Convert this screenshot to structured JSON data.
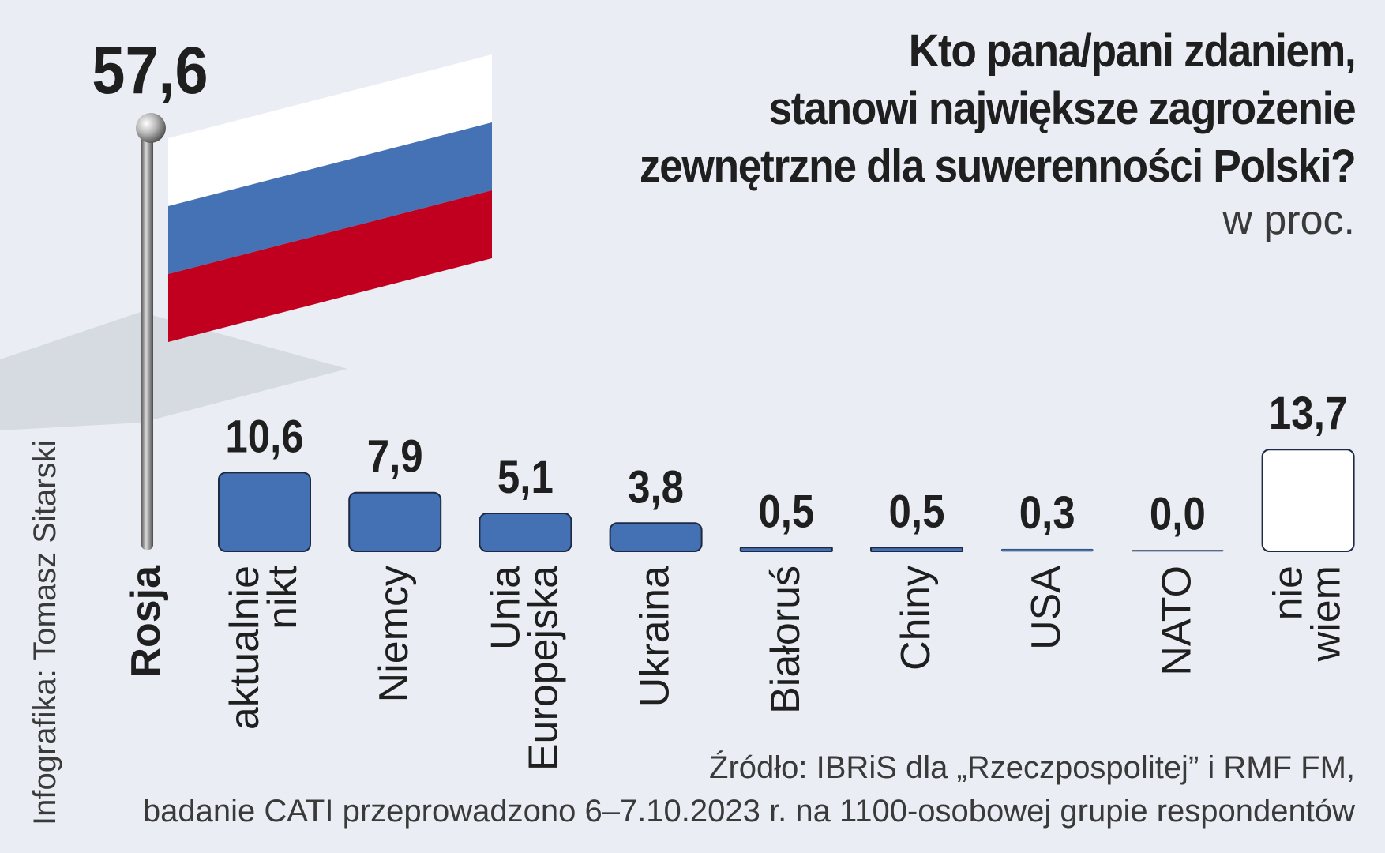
{
  "title": {
    "line1": "Kto pana/pani zdaniem,",
    "line2": "stanowi największe zagrożenie",
    "line3": "zewnętrzne dla suwerenności Polski?",
    "unit": "w proc."
  },
  "chart_data": {
    "type": "bar",
    "title": "Kto pana/pani zdaniem, stanowi największe zagrożenie zewnętrzne dla suwerenności Polski?",
    "ylabel": "w proc.",
    "categories": [
      [
        "Rosja"
      ],
      [
        "aktualnie",
        "nikt"
      ],
      [
        "Niemcy"
      ],
      [
        "Unia",
        "Europejska"
      ],
      [
        "Ukraina"
      ],
      [
        "Białoruś"
      ],
      [
        "Chiny"
      ],
      [
        "USA"
      ],
      [
        "NATO"
      ],
      [
        "nie",
        "wiem"
      ]
    ],
    "values": [
      57.6,
      10.6,
      7.9,
      5.1,
      3.8,
      0.5,
      0.5,
      0.3,
      0.0,
      13.7
    ],
    "value_labels": [
      "57,6",
      "10,6",
      "7,9",
      "5,1",
      "3,8",
      "0,5",
      "0,5",
      "0,3",
      "0,0",
      "13,7"
    ],
    "highlight": "Rosja",
    "colors": {
      "bar": "#4471b3",
      "bar_outline": "#1e2a44",
      "no_opinion_bar": "#ffffff",
      "flag_white": "#ffffff",
      "flag_blue": "#4472b4",
      "flag_red": "#c1001f",
      "background": "#eaeef4"
    }
  },
  "source": {
    "line1": "Źródło: IBRiS dla „Rzeczpospolitej” i RMF FM,",
    "line2": "badanie CATI przeprowadzono 6–7.10.2023 r. na 1100-osobowej grupie respondentów"
  },
  "credit": "Infografika: Tomasz Sitarski"
}
